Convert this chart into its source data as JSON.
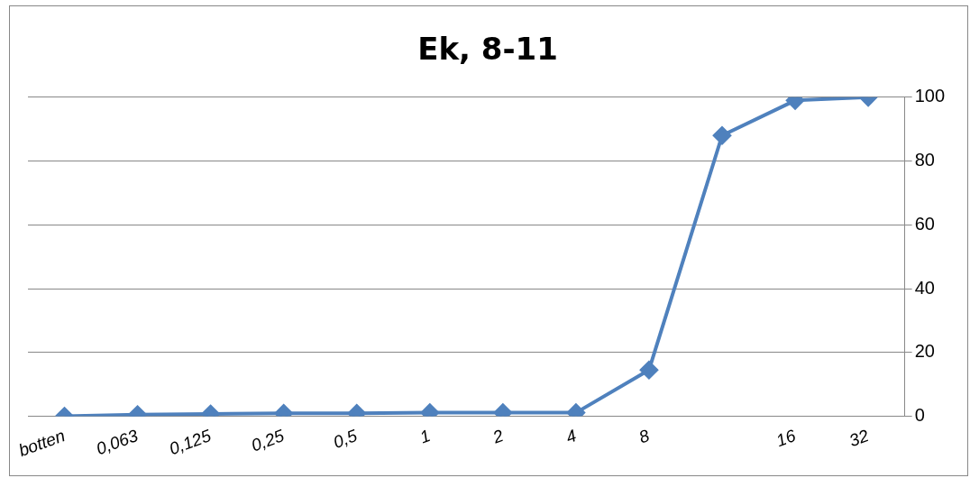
{
  "chart_data": {
    "type": "line",
    "title": "Ek, 8-11",
    "categories": [
      "botten",
      "0,063",
      "0,125",
      "0,25",
      "0,5",
      "1",
      "2",
      "4",
      "8",
      null,
      "16",
      "32"
    ],
    "series": [
      {
        "color": "#4f81bd",
        "values": [
          0,
          0.5,
          0.7,
          0.9,
          0.9,
          1.1,
          1.1,
          1.1,
          14.5,
          88,
          99,
          100
        ]
      }
    ],
    "ylim": [
      0,
      100
    ],
    "yticks": [
      0,
      20,
      40,
      60,
      80,
      100
    ],
    "grid": "y",
    "marker": "diamond",
    "line_style": "solid",
    "legend": false
  }
}
